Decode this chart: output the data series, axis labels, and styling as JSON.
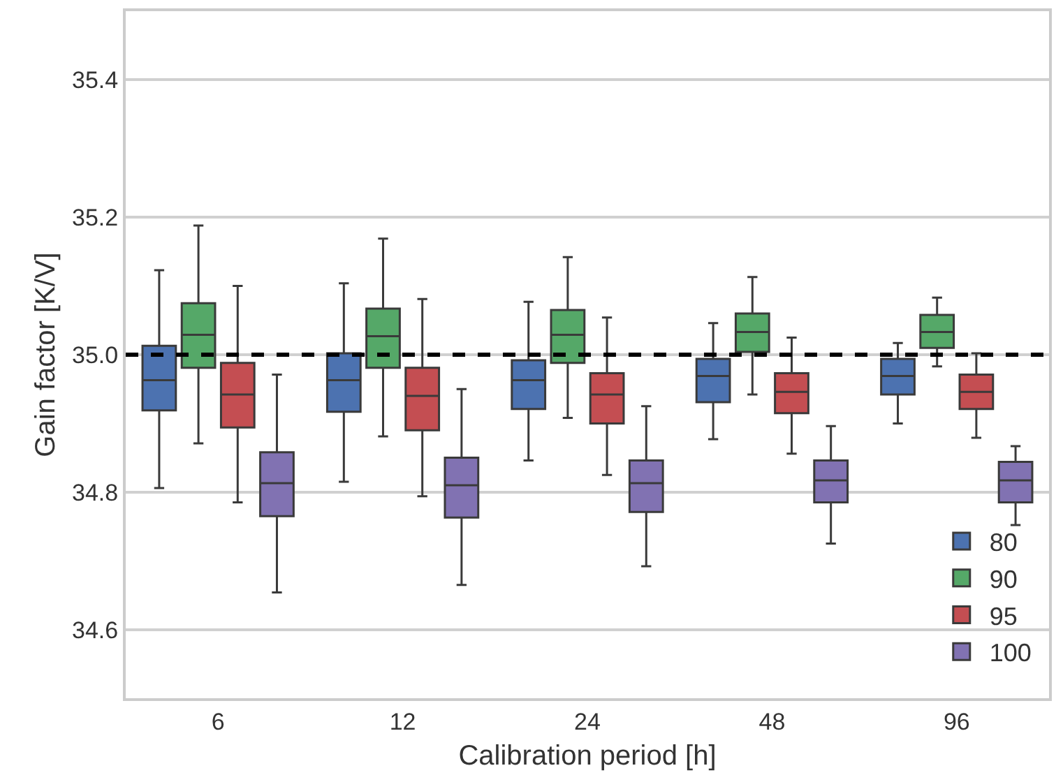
{
  "chart_data": {
    "type": "box",
    "xlabel": "Calibration period [h]",
    "ylabel": "Gain factor [K/V]",
    "categories": [
      "6",
      "12",
      "24",
      "48",
      "96"
    ],
    "ylim": [
      34.5,
      35.5
    ],
    "yticks": [
      {
        "value": 34.6,
        "label": "34.6"
      },
      {
        "value": 34.8,
        "label": "34.8"
      },
      {
        "value": 35,
        "label": "35.0"
      },
      {
        "value": 35.2,
        "label": "35.2"
      },
      {
        "value": 35.4,
        "label": "35.4"
      }
    ],
    "grid": "y",
    "legend": "bottom right",
    "ref_lines": [
      {
        "axis": "y",
        "value": 35.0,
        "color": "#000000",
        "line_style": "dashed"
      }
    ],
    "series": [
      {
        "name": "80",
        "color": "#4c72b0",
        "boxes": [
          {
            "low": 34.806,
            "q1": 34.919,
            "median": 34.963,
            "q3": 35.013,
            "high": 35.123
          },
          {
            "low": 34.815,
            "q1": 34.917,
            "median": 34.963,
            "q3": 35.002,
            "high": 35.104
          },
          {
            "low": 34.846,
            "q1": 34.921,
            "median": 34.963,
            "q3": 34.992,
            "high": 35.077
          },
          {
            "low": 34.877,
            "q1": 34.931,
            "median": 34.969,
            "q3": 34.994,
            "high": 35.046
          },
          {
            "low": 34.9,
            "q1": 34.942,
            "median": 34.969,
            "q3": 34.994,
            "high": 35.017
          }
        ]
      },
      {
        "name": "90",
        "color": "#55a868",
        "boxes": [
          {
            "low": 34.871,
            "q1": 34.981,
            "median": 35.029,
            "q3": 35.075,
            "high": 35.188
          },
          {
            "low": 34.881,
            "q1": 34.981,
            "median": 35.027,
            "q3": 35.067,
            "high": 35.169
          },
          {
            "low": 34.908,
            "q1": 34.988,
            "median": 35.029,
            "q3": 35.065,
            "high": 35.142
          },
          {
            "low": 34.942,
            "q1": 35.004,
            "median": 35.033,
            "q3": 35.06,
            "high": 35.113
          },
          {
            "low": 34.983,
            "q1": 35.01,
            "median": 35.033,
            "q3": 35.058,
            "high": 35.083
          }
        ]
      },
      {
        "name": "95",
        "color": "#c44e52",
        "boxes": [
          {
            "low": 34.785,
            "q1": 34.894,
            "median": 34.942,
            "q3": 34.988,
            "high": 35.1
          },
          {
            "low": 34.794,
            "q1": 34.89,
            "median": 34.94,
            "q3": 34.981,
            "high": 35.081
          },
          {
            "low": 34.825,
            "q1": 34.9,
            "median": 34.942,
            "q3": 34.973,
            "high": 35.054
          },
          {
            "low": 34.856,
            "q1": 34.915,
            "median": 34.946,
            "q3": 34.973,
            "high": 35.025
          },
          {
            "low": 34.879,
            "q1": 34.921,
            "median": 34.946,
            "q3": 34.971,
            "high": 35.002
          }
        ]
      },
      {
        "name": "100",
        "color": "#8172b2",
        "boxes": [
          {
            "low": 34.654,
            "q1": 34.765,
            "median": 34.813,
            "q3": 34.858,
            "high": 34.971
          },
          {
            "low": 34.665,
            "q1": 34.763,
            "median": 34.81,
            "q3": 34.85,
            "high": 34.95
          },
          {
            "low": 34.692,
            "q1": 34.771,
            "median": 34.813,
            "q3": 34.846,
            "high": 34.925
          },
          {
            "low": 34.725,
            "q1": 34.785,
            "median": 34.817,
            "q3": 34.846,
            "high": 34.896
          },
          {
            "low": 34.752,
            "q1": 34.785,
            "median": 34.817,
            "q3": 34.844,
            "high": 34.867
          }
        ]
      }
    ]
  }
}
